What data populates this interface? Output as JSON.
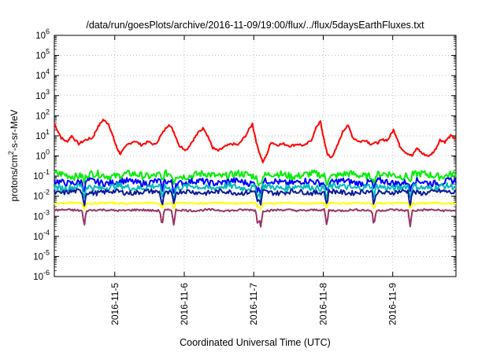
{
  "chart_data": {
    "type": "line",
    "title": "/data/run/goesPlots/archive/2016-11-09/19:00/flux/../flux/5daysEarthFluxes.txt",
    "xlabel": "Coordinated Universal Time (UTC)",
    "ylabel": {
      "prefix": "protons/cm",
      "superscript": "2",
      "suffix": "-s-sr-MeV"
    },
    "x_range_days": [
      0,
      5.78
    ],
    "x_ticks": [
      {
        "label": "2016-11-5",
        "day": 0.87
      },
      {
        "label": "2016-11-6",
        "day": 1.87
      },
      {
        "label": "2016-11-7",
        "day": 2.87
      },
      {
        "label": "2016-11-8",
        "day": 3.87
      },
      {
        "label": "2016-11-9",
        "day": 4.87
      }
    ],
    "y_scale": "log",
    "ylim": [
      1e-06,
      1000000.0
    ],
    "y_ticks": [
      {
        "base": "10",
        "exp": "-6",
        "value": -6
      },
      {
        "base": "10",
        "exp": "-5",
        "value": -5
      },
      {
        "base": "10",
        "exp": "-4",
        "value": -4
      },
      {
        "base": "10",
        "exp": "-3",
        "value": -3
      },
      {
        "base": "10",
        "exp": "-2",
        "value": -2
      },
      {
        "base": "10",
        "exp": "-1",
        "value": -1
      },
      {
        "base": "10",
        "exp": "0",
        "value": 0
      },
      {
        "base": "10",
        "exp": "1",
        "value": 1
      },
      {
        "base": "10",
        "exp": "2",
        "value": 2
      },
      {
        "base": "10",
        "exp": "3",
        "value": 3
      },
      {
        "base": "10",
        "exp": "4",
        "value": 4
      },
      {
        "base": "10",
        "exp": "5",
        "value": 5
      },
      {
        "base": "10",
        "exp": "6",
        "value": 6
      }
    ],
    "grid": true,
    "legend": "none",
    "series": [
      {
        "color": "#ff0000",
        "log10_values": [
          [
            0.0,
            1.6
          ],
          [
            0.1,
            0.9
          ],
          [
            0.18,
            0.7
          ],
          [
            0.25,
            1.0
          ],
          [
            0.35,
            0.6
          ],
          [
            0.45,
            0.8
          ],
          [
            0.55,
            0.9
          ],
          [
            0.62,
            1.4
          ],
          [
            0.7,
            1.8
          ],
          [
            0.78,
            1.6
          ],
          [
            0.85,
            0.9
          ],
          [
            0.9,
            0.4
          ],
          [
            0.95,
            0.1
          ],
          [
            1.05,
            0.55
          ],
          [
            1.15,
            0.75
          ],
          [
            1.25,
            0.55
          ],
          [
            1.35,
            0.7
          ],
          [
            1.45,
            0.55
          ],
          [
            1.55,
            1.1
          ],
          [
            1.65,
            1.6
          ],
          [
            1.72,
            1.2
          ],
          [
            1.8,
            0.5
          ],
          [
            1.9,
            0.3
          ],
          [
            2.0,
            0.8
          ],
          [
            2.08,
            1.2
          ],
          [
            2.15,
            1.4
          ],
          [
            2.22,
            0.9
          ],
          [
            2.28,
            0.4
          ],
          [
            2.36,
            0.25
          ],
          [
            2.45,
            0.45
          ],
          [
            2.55,
            0.6
          ],
          [
            2.65,
            0.55
          ],
          [
            2.75,
            1.0
          ],
          [
            2.85,
            1.6
          ],
          [
            2.92,
            0.5
          ],
          [
            3.0,
            -0.3
          ],
          [
            3.05,
            0.0
          ],
          [
            3.12,
            0.7
          ],
          [
            3.2,
            0.55
          ],
          [
            3.3,
            0.6
          ],
          [
            3.4,
            0.5
          ],
          [
            3.5,
            0.6
          ],
          [
            3.6,
            0.5
          ],
          [
            3.7,
            0.8
          ],
          [
            3.78,
            1.5
          ],
          [
            3.83,
            1.7
          ],
          [
            3.88,
            0.8
          ],
          [
            3.93,
            0.1
          ],
          [
            3.98,
            -0.1
          ],
          [
            4.05,
            0.3
          ],
          [
            4.15,
            1.2
          ],
          [
            4.22,
            1.55
          ],
          [
            4.3,
            0.9
          ],
          [
            4.4,
            0.7
          ],
          [
            4.48,
            0.8
          ],
          [
            4.55,
            0.6
          ],
          [
            4.65,
            0.65
          ],
          [
            4.72,
            0.8
          ],
          [
            4.8,
            0.8
          ],
          [
            4.88,
            1.3
          ],
          [
            4.92,
            1.0
          ],
          [
            4.97,
            0.5
          ],
          [
            5.05,
            0.2
          ],
          [
            5.15,
            0.0
          ],
          [
            5.22,
            0.4
          ],
          [
            5.3,
            0.1
          ],
          [
            5.4,
            0.0
          ],
          [
            5.48,
            0.3
          ],
          [
            5.55,
            0.8
          ],
          [
            5.62,
            0.7
          ],
          [
            5.7,
            1.0
          ],
          [
            5.78,
            0.85
          ]
        ]
      },
      {
        "color": "#00ee00",
        "base": -0.95,
        "amplitude": 0.18,
        "dip_depth": 0.4
      },
      {
        "color": "#0000ff",
        "base": -1.3,
        "amplitude": 0.16,
        "dip_depth": 0.5
      },
      {
        "color": "#00bbbb",
        "base": -1.55,
        "amplitude": 0.15,
        "dip_depth": 0.6
      },
      {
        "color": "#0a1a9a",
        "base": -1.8,
        "amplitude": 0.12,
        "dip_depth": 0.7
      },
      {
        "color": "#ffff00",
        "base": -2.35,
        "amplitude": 0.04,
        "dip_depth": 0.3
      },
      {
        "color": "#993366",
        "base": -2.7,
        "amplitude": 0.05,
        "dip_depth": 0.8
      }
    ],
    "dip_days": [
      0.43,
      1.55,
      1.72,
      2.93,
      2.97,
      3.92,
      4.6,
      5.12
    ]
  }
}
